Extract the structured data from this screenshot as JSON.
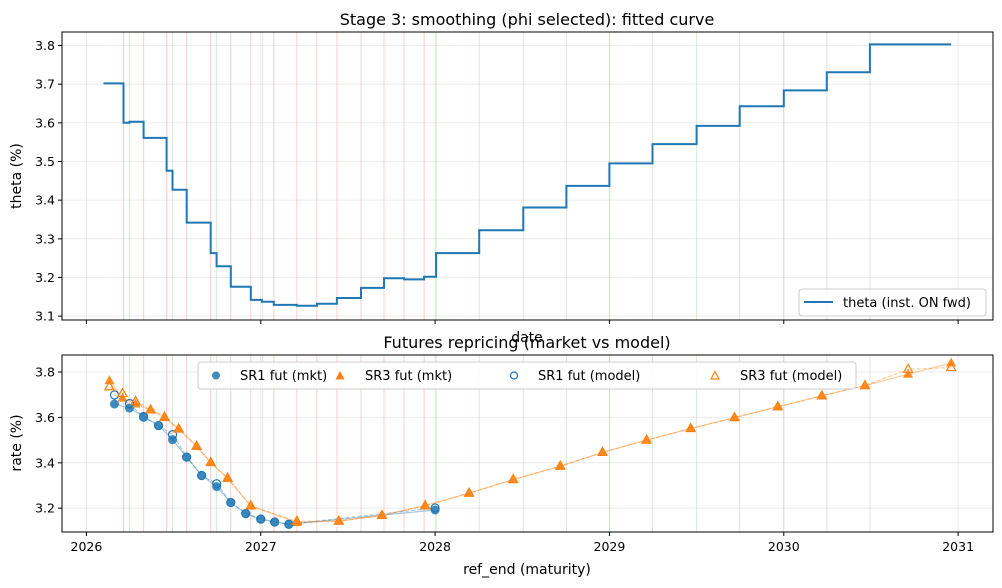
{
  "chart_data": [
    {
      "type": "line",
      "subtype": "step",
      "title": "Stage 3: smoothing (phi selected): fitted curve",
      "xlabel": "date",
      "ylabel": "theta (%)",
      "xlim": [
        2025.86,
        2031.2
      ],
      "ylim": [
        3.09,
        3.835
      ],
      "yticks": [
        3.1,
        3.2,
        3.3,
        3.4,
        3.5,
        3.6,
        3.7,
        3.8
      ],
      "ytick_labels": [
        "3.1",
        "3.2",
        "3.3",
        "3.4",
        "3.5",
        "3.6",
        "3.7",
        "3.8"
      ],
      "xticks": [
        2026,
        2027,
        2028,
        2029,
        2030,
        2031
      ],
      "xtick_labels_visible": false,
      "grid": true,
      "legend": {
        "placement": "lower-right",
        "entries": [
          "theta (inst. ON fwd)"
        ]
      },
      "vlines_red": [
        2026.213,
        2026.328,
        2026.46,
        2026.575,
        2026.713,
        2026.828,
        2026.943,
        2027.075,
        2027.207,
        2027.322,
        2027.437,
        2027.575,
        2027.707,
        2027.822,
        2027.937
      ],
      "vlines_green": [
        2026.247,
        2026.494,
        2026.747,
        2027.011,
        2028.006,
        2028.253,
        2028.506,
        2028.753,
        2029.0,
        2029.247,
        2029.5,
        2029.747,
        2030.0,
        2030.247,
        2030.494
      ],
      "series": [
        {
          "name": "theta (inst. ON fwd)",
          "color": "#1f77b4",
          "steps": [
            {
              "x0": 2026.098,
              "x1": 2026.213,
              "y": 3.702
            },
            {
              "x0": 2026.213,
              "x1": 2026.247,
              "y": 3.6
            },
            {
              "x0": 2026.247,
              "x1": 2026.328,
              "y": 3.603
            },
            {
              "x0": 2026.328,
              "x1": 2026.46,
              "y": 3.561
            },
            {
              "x0": 2026.46,
              "x1": 2026.494,
              "y": 3.476
            },
            {
              "x0": 2026.494,
              "x1": 2026.575,
              "y": 3.427
            },
            {
              "x0": 2026.575,
              "x1": 2026.713,
              "y": 3.342
            },
            {
              "x0": 2026.713,
              "x1": 2026.747,
              "y": 3.263
            },
            {
              "x0": 2026.747,
              "x1": 2026.828,
              "y": 3.229
            },
            {
              "x0": 2026.828,
              "x1": 2026.943,
              "y": 3.176
            },
            {
              "x0": 2026.943,
              "x1": 2027.006,
              "y": 3.142
            },
            {
              "x0": 2027.006,
              "x1": 2027.075,
              "y": 3.137
            },
            {
              "x0": 2027.075,
              "x1": 2027.207,
              "y": 3.129
            },
            {
              "x0": 2027.207,
              "x1": 2027.322,
              "y": 3.127
            },
            {
              "x0": 2027.322,
              "x1": 2027.437,
              "y": 3.132
            },
            {
              "x0": 2027.437,
              "x1": 2027.575,
              "y": 3.147
            },
            {
              "x0": 2027.575,
              "x1": 2027.707,
              "y": 3.173
            },
            {
              "x0": 2027.707,
              "x1": 2027.822,
              "y": 3.198
            },
            {
              "x0": 2027.822,
              "x1": 2027.937,
              "y": 3.195
            },
            {
              "x0": 2027.937,
              "x1": 2028.006,
              "y": 3.202
            },
            {
              "x0": 2028.006,
              "x1": 2028.253,
              "y": 3.263
            },
            {
              "x0": 2028.253,
              "x1": 2028.506,
              "y": 3.322
            },
            {
              "x0": 2028.506,
              "x1": 2028.753,
              "y": 3.381
            },
            {
              "x0": 2028.753,
              "x1": 2029.0,
              "y": 3.437
            },
            {
              "x0": 2029.0,
              "x1": 2029.247,
              "y": 3.495
            },
            {
              "x0": 2029.247,
              "x1": 2029.5,
              "y": 3.545
            },
            {
              "x0": 2029.5,
              "x1": 2029.747,
              "y": 3.592
            },
            {
              "x0": 2029.747,
              "x1": 2030.0,
              "y": 3.643
            },
            {
              "x0": 2030.0,
              "x1": 2030.247,
              "y": 3.684
            },
            {
              "x0": 2030.247,
              "x1": 2030.494,
              "y": 3.731
            },
            {
              "x0": 2030.494,
              "x1": 2030.96,
              "y": 3.803
            }
          ]
        }
      ]
    },
    {
      "type": "scatter",
      "title": "Futures repricing (market vs model)",
      "xlabel": "ref_end (maturity)",
      "ylabel": "rate (%)",
      "xlim": [
        2025.86,
        2031.2
      ],
      "ylim": [
        3.095,
        3.875
      ],
      "yticks": [
        3.2,
        3.4,
        3.6,
        3.8
      ],
      "ytick_labels": [
        "3.2",
        "3.4",
        "3.6",
        "3.8"
      ],
      "xticks": [
        2026,
        2027,
        2028,
        2029,
        2030,
        2031
      ],
      "xtick_labels": [
        "2026",
        "2027",
        "2028",
        "2029",
        "2030",
        "2031"
      ],
      "grid": true,
      "legend": {
        "placement": "upper-center",
        "ncol": 4,
        "entries": [
          "SR1 fut (mkt)",
          "SR3 fut (mkt)",
          "SR1 fut (model)",
          "SR3 fut (model)"
        ]
      },
      "series": [
        {
          "name": "SR1 fut (mkt)",
          "marker": "filled-circle",
          "color": "#1f77b4",
          "points": [
            [
              2026.161,
              3.659
            ],
            [
              2026.247,
              3.641
            ],
            [
              2026.328,
              3.605
            ],
            [
              2026.414,
              3.564
            ],
            [
              2026.494,
              3.502
            ],
            [
              2026.575,
              3.425
            ],
            [
              2026.661,
              3.344
            ],
            [
              2026.747,
              3.295
            ],
            [
              2026.828,
              3.225
            ],
            [
              2026.914,
              3.176
            ],
            [
              2027.0,
              3.152
            ],
            [
              2027.08,
              3.139
            ],
            [
              2027.161,
              3.129
            ],
            [
              2028.0,
              3.192
            ]
          ]
        },
        {
          "name": "SR3 fut (mkt)",
          "marker": "filled-triangle",
          "color": "#ff7f0e",
          "points": [
            [
              2026.132,
              3.762
            ],
            [
              2026.207,
              3.685
            ],
            [
              2026.282,
              3.659
            ],
            [
              2026.368,
              3.633
            ],
            [
              2026.448,
              3.604
            ],
            [
              2026.529,
              3.549
            ],
            [
              2026.632,
              3.473
            ],
            [
              2026.713,
              3.401
            ],
            [
              2026.81,
              3.332
            ],
            [
              2026.943,
              3.21
            ],
            [
              2027.207,
              3.137
            ],
            [
              2027.448,
              3.143
            ],
            [
              2027.695,
              3.168
            ],
            [
              2027.943,
              3.212
            ],
            [
              2028.195,
              3.266
            ],
            [
              2028.448,
              3.326
            ],
            [
              2028.718,
              3.385
            ],
            [
              2028.96,
              3.446
            ],
            [
              2029.213,
              3.5
            ],
            [
              2029.466,
              3.551
            ],
            [
              2029.718,
              3.599
            ],
            [
              2029.966,
              3.647
            ],
            [
              2030.218,
              3.695
            ],
            [
              2030.466,
              3.74
            ],
            [
              2030.713,
              3.79
            ],
            [
              2030.96,
              3.84
            ]
          ]
        },
        {
          "name": "SR1 fut (model)",
          "marker": "hollow-circle",
          "color": "#1f77b4",
          "points": [
            [
              2026.161,
              3.699
            ],
            [
              2026.247,
              3.661
            ],
            [
              2026.328,
              3.601
            ],
            [
              2026.414,
              3.564
            ],
            [
              2026.494,
              3.524
            ],
            [
              2026.575,
              3.425
            ],
            [
              2026.661,
              3.344
            ],
            [
              2026.747,
              3.308
            ],
            [
              2026.828,
              3.225
            ],
            [
              2026.914,
              3.176
            ],
            [
              2027.0,
              3.152
            ],
            [
              2027.08,
              3.139
            ],
            [
              2027.161,
              3.129
            ],
            [
              2028.0,
              3.201
            ]
          ]
        },
        {
          "name": "SR3 fut (model)",
          "marker": "hollow-triangle",
          "color": "#ff7f0e",
          "points": [
            [
              2026.132,
              3.735
            ],
            [
              2026.207,
              3.705
            ],
            [
              2026.282,
              3.67
            ],
            [
              2026.368,
              3.633
            ],
            [
              2026.448,
              3.6
            ],
            [
              2026.529,
              3.549
            ],
            [
              2026.632,
              3.473
            ],
            [
              2026.713,
              3.401
            ],
            [
              2026.81,
              3.332
            ],
            [
              2026.943,
              3.21
            ],
            [
              2027.207,
              3.142
            ],
            [
              2027.448,
              3.143
            ],
            [
              2027.695,
              3.168
            ],
            [
              2027.943,
              3.21
            ],
            [
              2028.195,
              3.266
            ],
            [
              2028.448,
              3.326
            ],
            [
              2028.718,
              3.385
            ],
            [
              2028.96,
              3.446
            ],
            [
              2029.213,
              3.5
            ],
            [
              2029.466,
              3.551
            ],
            [
              2029.718,
              3.599
            ],
            [
              2029.966,
              3.647
            ],
            [
              2030.218,
              3.695
            ],
            [
              2030.466,
              3.74
            ],
            [
              2030.713,
              3.812
            ],
            [
              2030.96,
              3.82
            ]
          ]
        }
      ]
    }
  ]
}
